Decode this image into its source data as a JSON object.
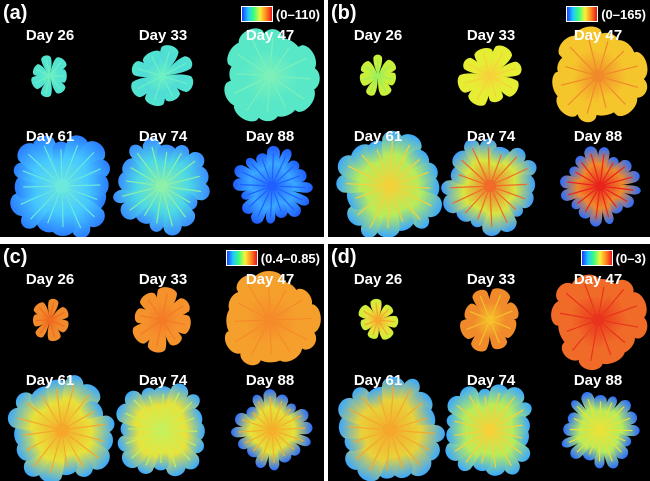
{
  "panels": [
    {
      "id": "a",
      "label": "(a)",
      "range": "(0–110)",
      "days": [
        "Day 26",
        "Day 33",
        "Day 47",
        "Day 61",
        "Day 74",
        "Day 88"
      ],
      "colors": {
        "base": [
          "#52e4d0",
          "#4fdcd6",
          "#58e8c8",
          "#45c8ff",
          "#4bd8e4",
          "#3aa8ff"
        ],
        "accent": [
          "#6cf0c0",
          "#6cf0c4",
          "#7cf0b8",
          "#6ce8dc",
          "#8cf0a8",
          "#2060ff"
        ],
        "tip": [
          "#52e4d0",
          "#52e4d0",
          "#58e8c8",
          "#2b7dff",
          "#3a8cff",
          "#1f5cff"
        ]
      }
    },
    {
      "id": "b",
      "label": "(b)",
      "range": "(0–165)",
      "days": [
        "Day 26",
        "Day 33",
        "Day 47",
        "Day 61",
        "Day 74",
        "Day 88"
      ],
      "colors": {
        "base": [
          "#c8f03a",
          "#e6ee34",
          "#f5c52c",
          "#b8ec5a",
          "#d8e640",
          "#f08a2a"
        ],
        "accent": [
          "#9cf05a",
          "#f7d23a",
          "#f08a2a",
          "#f2d23a",
          "#f06a28",
          "#e8241c"
        ],
        "tip": [
          "#c8f03a",
          "#e6ee34",
          "#f5c52c",
          "#3aa8ff",
          "#3a9cff",
          "#2a6cff"
        ]
      }
    },
    {
      "id": "c",
      "label": "(c)",
      "range": "(0.4–0.85)",
      "days": [
        "Day 26",
        "Day 33",
        "Day 47",
        "Day 61",
        "Day 74",
        "Day 88"
      ],
      "colors": {
        "base": [
          "#f08a2a",
          "#f5922c",
          "#f5a02c",
          "#e8e23a",
          "#e8e23a",
          "#e4e23a"
        ],
        "accent": [
          "#f26a22",
          "#f47a26",
          "#f58a2a",
          "#f5a82c",
          "#c8f05a",
          "#f5b02c"
        ],
        "tip": [
          "#f08a2a",
          "#f5922c",
          "#f5a02c",
          "#3aa8ff",
          "#3aa8ff",
          "#2a6cff"
        ]
      }
    },
    {
      "id": "d",
      "label": "(d)",
      "range": "(0–3)",
      "days": [
        "Day 26",
        "Day 33",
        "Day 47",
        "Day 61",
        "Day 74",
        "Day 88"
      ],
      "colors": {
        "base": [
          "#e8e23a",
          "#f08a2a",
          "#f06a28",
          "#e8d23a",
          "#b8ec5a",
          "#b8ec5a"
        ],
        "accent": [
          "#f5a82c",
          "#f5c22c",
          "#e8341c",
          "#f5a82c",
          "#f5d23a",
          "#e8e23a"
        ],
        "tip": [
          "#c8f03a",
          "#f08a2a",
          "#f06a28",
          "#3aa8ff",
          "#3aa8ff",
          "#2a6cff"
        ]
      }
    }
  ]
}
